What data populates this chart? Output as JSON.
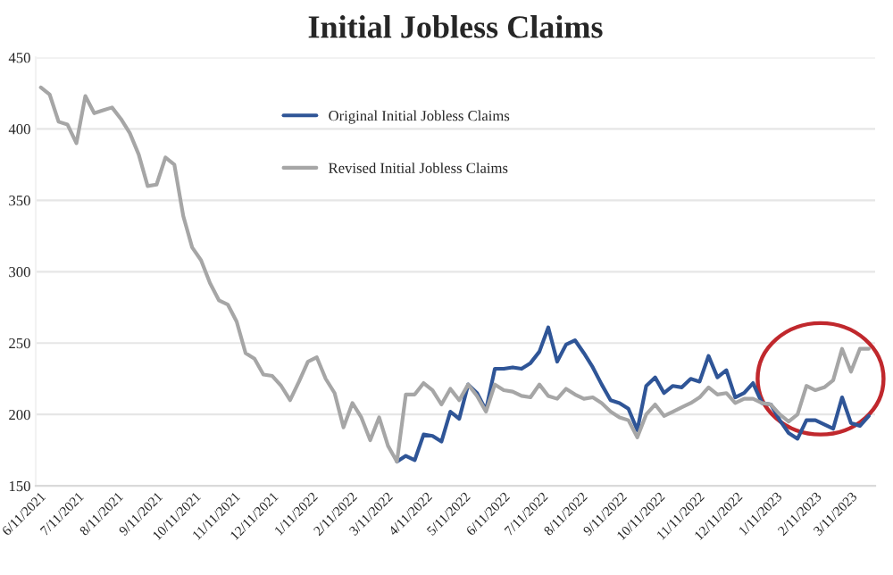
{
  "chart_data": {
    "type": "line",
    "title": "Initial Jobless Claims",
    "x": [
      "2021-06-12",
      "2021-06-19",
      "2021-06-26",
      "2021-07-03",
      "2021-07-10",
      "2021-07-17",
      "2021-07-24",
      "2021-07-31",
      "2021-08-07",
      "2021-08-14",
      "2021-08-21",
      "2021-08-28",
      "2021-09-04",
      "2021-09-11",
      "2021-09-18",
      "2021-09-25",
      "2021-10-02",
      "2021-10-09",
      "2021-10-16",
      "2021-10-23",
      "2021-10-30",
      "2021-11-06",
      "2021-11-13",
      "2021-11-20",
      "2021-11-27",
      "2021-12-04",
      "2021-12-11",
      "2021-12-18",
      "2021-12-25",
      "2022-01-01",
      "2022-01-08",
      "2022-01-15",
      "2022-01-22",
      "2022-01-29",
      "2022-02-05",
      "2022-02-12",
      "2022-02-19",
      "2022-02-26",
      "2022-03-05",
      "2022-03-12",
      "2022-03-19",
      "2022-03-26",
      "2022-04-02",
      "2022-04-09",
      "2022-04-16",
      "2022-04-23",
      "2022-04-30",
      "2022-05-07",
      "2022-05-14",
      "2022-05-21",
      "2022-05-28",
      "2022-06-04",
      "2022-06-11",
      "2022-06-18",
      "2022-06-25",
      "2022-07-02",
      "2022-07-09",
      "2022-07-16",
      "2022-07-23",
      "2022-07-30",
      "2022-08-06",
      "2022-08-13",
      "2022-08-20",
      "2022-08-27",
      "2022-09-03",
      "2022-09-10",
      "2022-09-17",
      "2022-09-24",
      "2022-10-01",
      "2022-10-08",
      "2022-10-15",
      "2022-10-22",
      "2022-10-29",
      "2022-11-05",
      "2022-11-12",
      "2022-11-19",
      "2022-11-26",
      "2022-12-03",
      "2022-12-10",
      "2022-12-17",
      "2022-12-24",
      "2022-12-31",
      "2023-01-07",
      "2023-01-14",
      "2023-01-21",
      "2023-01-28",
      "2023-02-04",
      "2023-02-11",
      "2023-02-18",
      "2023-02-25",
      "2023-03-04",
      "2023-03-11",
      "2023-03-18",
      "2023-03-25"
    ],
    "series": [
      {
        "name": "Original Initial Jobless Claims",
        "color": "#2f5597",
        "values": [
          null,
          null,
          null,
          null,
          null,
          null,
          null,
          null,
          null,
          null,
          null,
          null,
          null,
          null,
          null,
          null,
          null,
          null,
          null,
          null,
          null,
          null,
          null,
          null,
          null,
          null,
          null,
          null,
          null,
          null,
          null,
          null,
          null,
          null,
          null,
          null,
          null,
          null,
          null,
          null,
          167,
          171,
          168,
          186,
          185,
          181,
          202,
          197,
          221,
          215,
          203,
          232,
          232,
          233,
          232,
          236,
          244,
          261,
          237,
          249,
          252,
          243,
          233,
          221,
          210,
          208,
          204,
          189,
          220,
          226,
          215,
          220,
          219,
          225,
          223,
          241,
          226,
          231,
          212,
          215,
          222,
          208,
          207,
          196,
          187,
          183,
          196,
          196,
          193,
          190,
          212,
          194,
          192,
          199
        ]
      },
      {
        "name": "Revised Initial Jobless Claims",
        "color": "#a6a6a6",
        "values": [
          429,
          424,
          405,
          403,
          390,
          423,
          411,
          413,
          415,
          407,
          397,
          382,
          360,
          361,
          380,
          375,
          339,
          317,
          308,
          292,
          280,
          277,
          265,
          243,
          239,
          228,
          227,
          220,
          210,
          223,
          237,
          240,
          225,
          215,
          191,
          208,
          198,
          182,
          198,
          178,
          167,
          214,
          214,
          222,
          217,
          207,
          218,
          210,
          221,
          213,
          202,
          221,
          217,
          216,
          213,
          212,
          221,
          213,
          211,
          218,
          214,
          211,
          212,
          208,
          202,
          198,
          196,
          184,
          200,
          207,
          199,
          202,
          205,
          208,
          212,
          219,
          214,
          215,
          208,
          211,
          211,
          208,
          207,
          200,
          195,
          200,
          220,
          217,
          219,
          224,
          246,
          230,
          246,
          246
        ]
      }
    ],
    "xlim": [
      "2021-06-08",
      "2023-03-30"
    ],
    "xticks": [
      {
        "value": "2021-06-11",
        "label": "6/11/2021"
      },
      {
        "value": "2021-07-11",
        "label": "7/11/2021"
      },
      {
        "value": "2021-08-11",
        "label": "8/11/2021"
      },
      {
        "value": "2021-09-11",
        "label": "9/11/2021"
      },
      {
        "value": "2021-10-11",
        "label": "10/11/2021"
      },
      {
        "value": "2021-11-11",
        "label": "11/11/2021"
      },
      {
        "value": "2021-12-11",
        "label": "12/11/2021"
      },
      {
        "value": "2022-01-11",
        "label": "1/11/2022"
      },
      {
        "value": "2022-02-11",
        "label": "2/11/2022"
      },
      {
        "value": "2022-03-11",
        "label": "3/11/2022"
      },
      {
        "value": "2022-04-11",
        "label": "4/11/2022"
      },
      {
        "value": "2022-05-11",
        "label": "5/11/2022"
      },
      {
        "value": "2022-06-11",
        "label": "6/11/2022"
      },
      {
        "value": "2022-07-11",
        "label": "7/11/2022"
      },
      {
        "value": "2022-08-11",
        "label": "8/11/2022"
      },
      {
        "value": "2022-09-11",
        "label": "9/11/2022"
      },
      {
        "value": "2022-10-11",
        "label": "10/11/2022"
      },
      {
        "value": "2022-11-11",
        "label": "11/11/2022"
      },
      {
        "value": "2022-12-11",
        "label": "12/11/2022"
      },
      {
        "value": "2023-01-11",
        "label": "1/11/2023"
      },
      {
        "value": "2023-02-11",
        "label": "2/11/2023"
      },
      {
        "value": "2023-03-11",
        "label": "3/11/2023"
      }
    ],
    "ylim": [
      150,
      450
    ],
    "yticks": [
      150,
      200,
      250,
      300,
      350,
      400,
      450
    ],
    "grid": "y",
    "legend": "top",
    "marker": "none",
    "line_style": "solid"
  }
}
